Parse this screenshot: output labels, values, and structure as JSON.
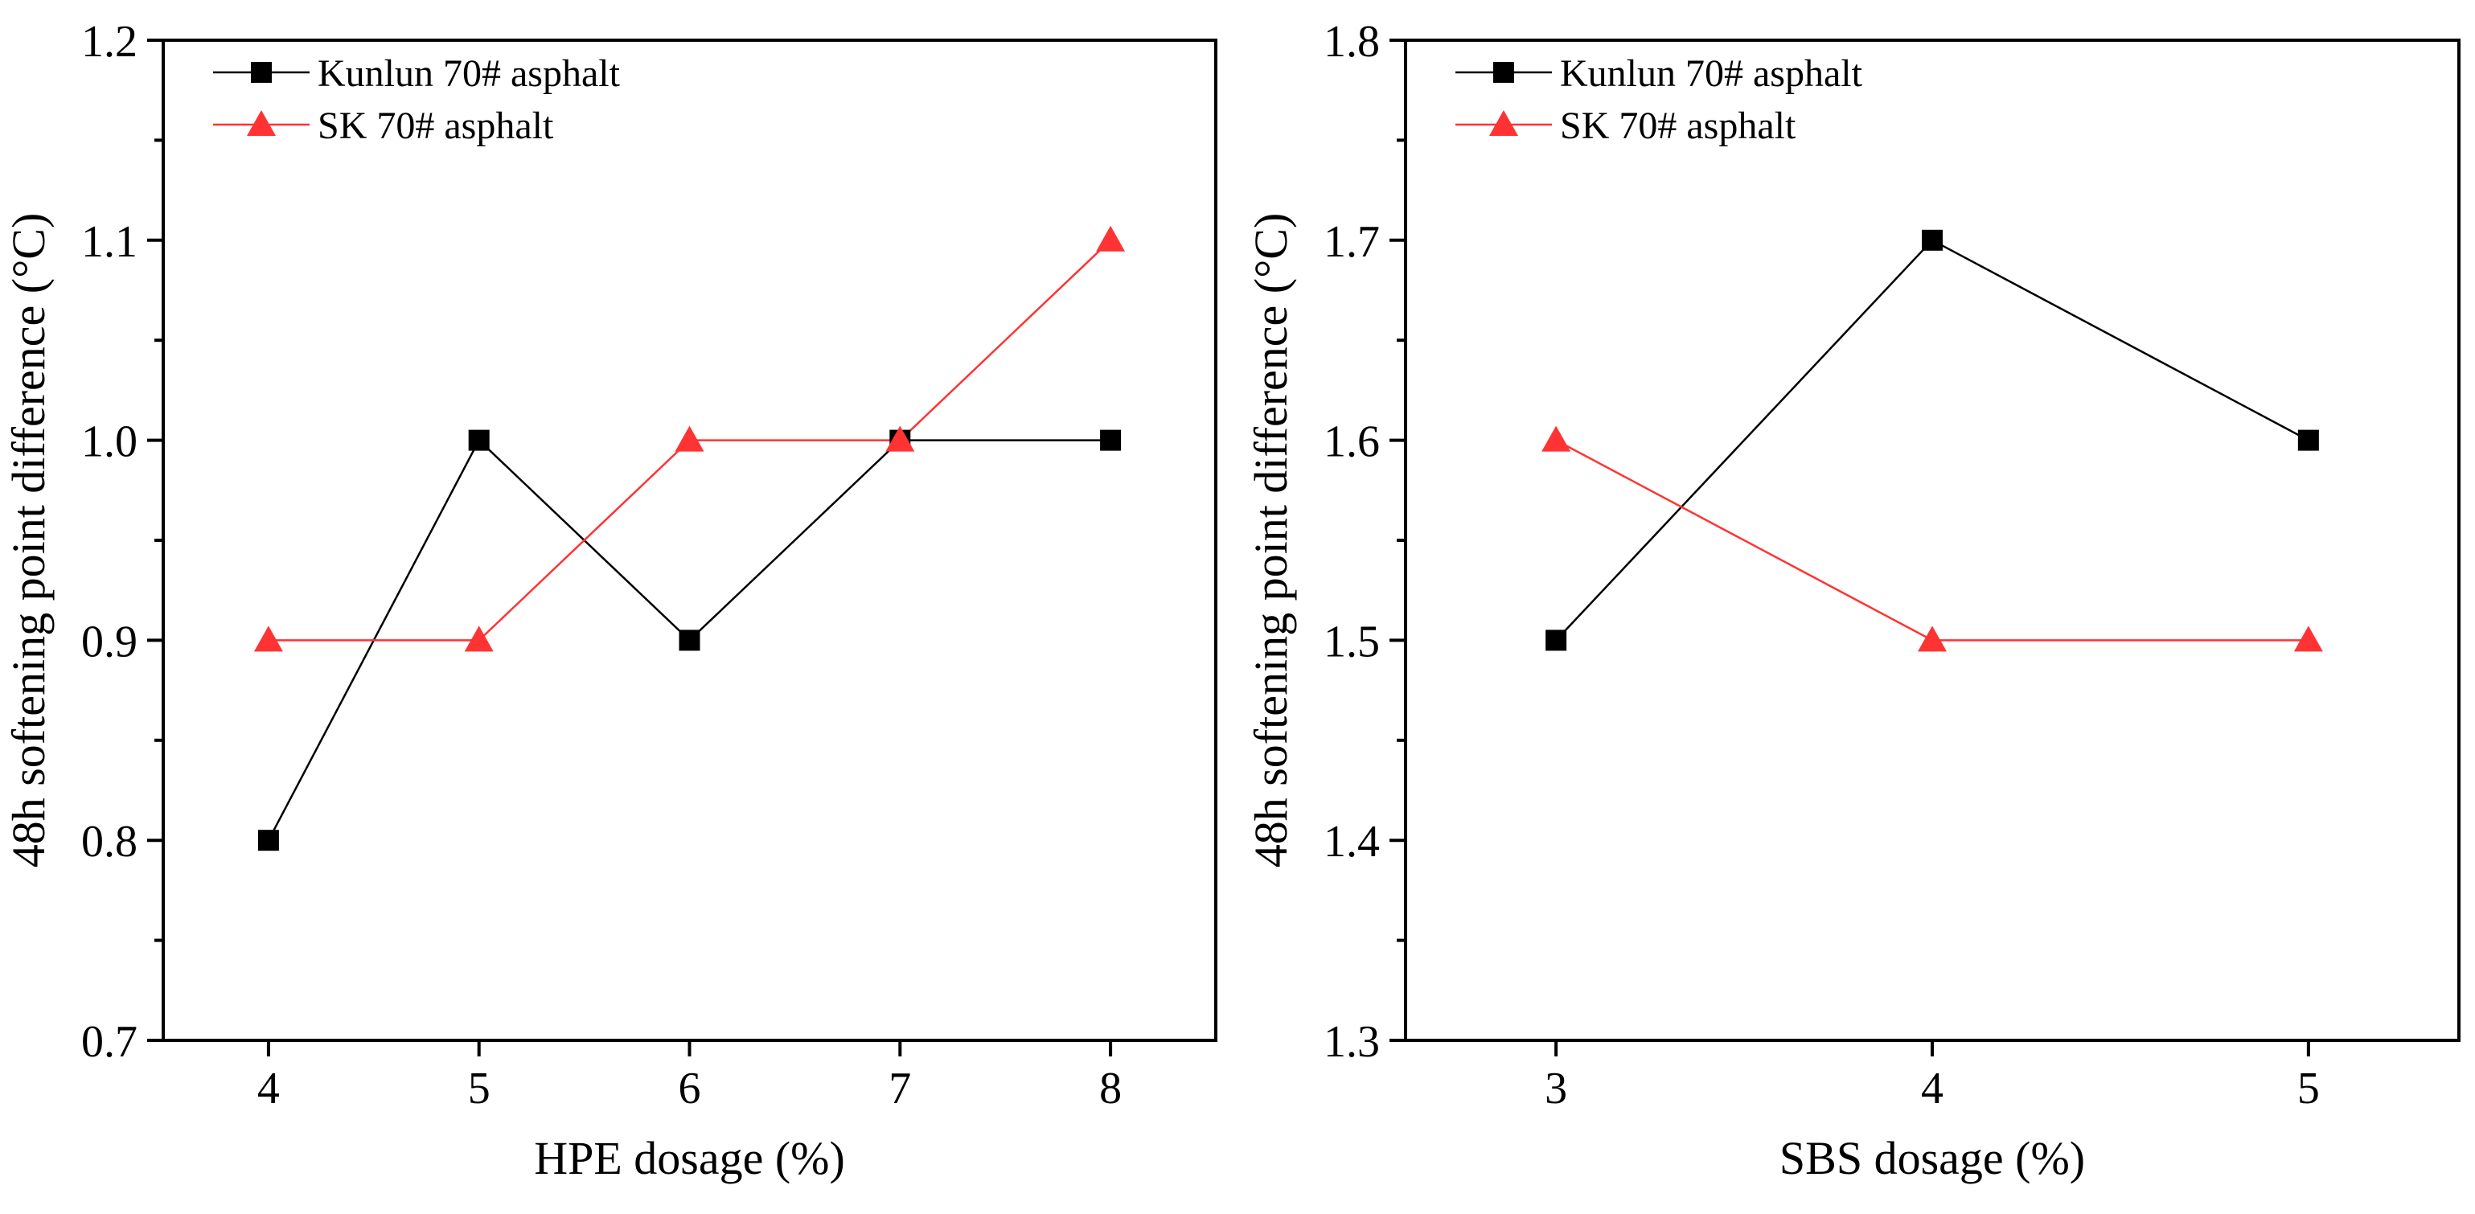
{
  "chart_data": [
    {
      "type": "line",
      "x": [
        4,
        5,
        6,
        7,
        8
      ],
      "xticks": [
        "4",
        "5",
        "6",
        "7",
        "8"
      ],
      "yticks": [
        "0.7",
        "0.8",
        "0.9",
        "1.0",
        "1.1",
        "1.2"
      ],
      "xlabel": "HPE dosage (%)",
      "ylabel": "48h softening point difference (°C)",
      "xlim": [
        3.5,
        8.5
      ],
      "ylim": [
        0.7,
        1.2
      ],
      "legend_position": "top-left",
      "series": [
        {
          "name": "Kunlun 70# asphalt",
          "marker": "square",
          "color": "#000000",
          "values": [
            0.8,
            1.0,
            0.9,
            1.0,
            1.0
          ]
        },
        {
          "name": "SK 70# asphalt",
          "marker": "triangle",
          "color": "#ff3333",
          "values": [
            0.9,
            0.9,
            1.0,
            1.0,
            1.1
          ]
        }
      ]
    },
    {
      "type": "line",
      "x": [
        3,
        4,
        5
      ],
      "xticks": [
        "3",
        "4",
        "5"
      ],
      "yticks": [
        "1.3",
        "1.4",
        "1.5",
        "1.6",
        "1.7",
        "1.8"
      ],
      "xlabel": "SBS dosage (%)",
      "ylabel": "48h softening point difference (°C)",
      "xlim": [
        2.6,
        5.4
      ],
      "ylim": [
        1.3,
        1.8
      ],
      "legend_position": "top-left",
      "series": [
        {
          "name": "Kunlun 70# asphalt",
          "marker": "square",
          "color": "#000000",
          "values": [
            1.5,
            1.7,
            1.6
          ]
        },
        {
          "name": "SK 70# asphalt",
          "marker": "triangle",
          "color": "#ff3333",
          "values": [
            1.6,
            1.5,
            1.5
          ]
        }
      ]
    }
  ]
}
